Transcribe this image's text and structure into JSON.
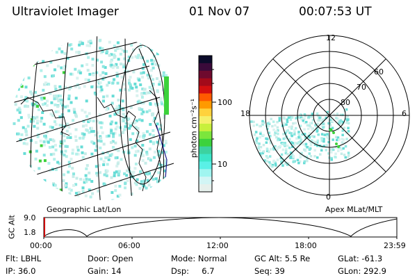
{
  "header": {
    "title": "Ultraviolet Imager",
    "date": "01 Nov 07",
    "time": "00:07:53 UT"
  },
  "panels": {
    "left_label": "Geographic Lat/Lon",
    "right_label": "Apex MLat/MLT"
  },
  "colorbar": {
    "label": "photon cm⁻²s⁻¹",
    "ticks": [
      "100",
      "10"
    ],
    "colors": [
      "#0b0b2a",
      "#3a0a3a",
      "#6e0a2e",
      "#a30a1a",
      "#d40f0f",
      "#ff5a00",
      "#ff9a00",
      "#ffd23c",
      "#f5f06a",
      "#c8f03c",
      "#7ce63c",
      "#3cd23c",
      "#3cd2a0",
      "#3ce6c8",
      "#5af0e6",
      "#a0f5f0",
      "#d2f5f5",
      "#e6f0ec"
    ]
  },
  "polar": {
    "mlt_labels": {
      "top": "12",
      "left": "18",
      "right": "6",
      "bottom": "0"
    },
    "lat_labels": [
      "60",
      "70",
      "80"
    ]
  },
  "altitude_plot": {
    "ylabel": "GC Alt",
    "yticks": [
      "9.0",
      "1.8"
    ],
    "xticks": [
      "00:00",
      "06:00",
      "12:00",
      "18:00",
      "23:59"
    ]
  },
  "info": {
    "row1": [
      {
        "label": "Flt: LBHL"
      },
      {
        "label": "Door: Open"
      },
      {
        "label": "Mode: Normal"
      },
      {
        "label": "GC Alt: 5.5 Re"
      },
      {
        "label": "GLat: -61.3"
      }
    ],
    "row2": [
      {
        "label": "IP: 36.0"
      },
      {
        "label": "Gain: 14"
      },
      {
        "label": "Dsp:     6.7"
      },
      {
        "label": "Seq: 39"
      },
      {
        "label": "GLon: 292.9"
      }
    ]
  },
  "colors": {
    "cyan_cloud": "#9cf0e8",
    "green_spots": "#3cd23c",
    "grid": "#000000"
  }
}
